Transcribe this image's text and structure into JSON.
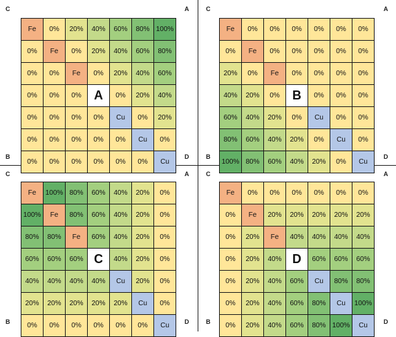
{
  "panels": [
    {
      "corner_labels": {
        "top_left": "C",
        "top_right": "A",
        "bottom_left": "B",
        "bottom_right": "D"
      },
      "cells": [
        [
          "Fe",
          "0%",
          "20%",
          "40%",
          "60%",
          "80%",
          "100%"
        ],
        [
          "0%",
          "Fe",
          "0%",
          "20%",
          "40%",
          "60%",
          "80%"
        ],
        [
          "0%",
          "0%",
          "Fe",
          "0%",
          "20%",
          "40%",
          "60%"
        ],
        [
          "0%",
          "0%",
          "0%",
          "A",
          "0%",
          "20%",
          "40%"
        ],
        [
          "0%",
          "0%",
          "0%",
          "0%",
          "Cu",
          "0%",
          "20%"
        ],
        [
          "0%",
          "0%",
          "0%",
          "0%",
          "0%",
          "Cu",
          "0%"
        ],
        [
          "0%",
          "0%",
          "0%",
          "0%",
          "0%",
          "0%",
          "Cu"
        ]
      ]
    },
    {
      "corner_labels": {
        "top_left": "C",
        "top_right": "A",
        "bottom_left": "B",
        "bottom_right": "D"
      },
      "cells": [
        [
          "Fe",
          "0%",
          "0%",
          "0%",
          "0%",
          "0%",
          "0%"
        ],
        [
          "0%",
          "Fe",
          "0%",
          "0%",
          "0%",
          "0%",
          "0%"
        ],
        [
          "20%",
          "0%",
          "Fe",
          "0%",
          "0%",
          "0%",
          "0%"
        ],
        [
          "40%",
          "20%",
          "0%",
          "B",
          "0%",
          "0%",
          "0%"
        ],
        [
          "60%",
          "40%",
          "20%",
          "0%",
          "Cu",
          "0%",
          "0%"
        ],
        [
          "80%",
          "60%",
          "40%",
          "20%",
          "0%",
          "Cu",
          "0%"
        ],
        [
          "100%",
          "80%",
          "60%",
          "40%",
          "20%",
          "0%",
          "Cu"
        ]
      ]
    },
    {
      "corner_labels": {
        "top_left": "C",
        "top_right": "A",
        "bottom_left": "B",
        "bottom_right": "D"
      },
      "cells": [
        [
          "Fe",
          "100%",
          "80%",
          "60%",
          "40%",
          "20%",
          "0%"
        ],
        [
          "100%",
          "Fe",
          "80%",
          "60%",
          "40%",
          "20%",
          "0%"
        ],
        [
          "80%",
          "80%",
          "Fe",
          "60%",
          "40%",
          "20%",
          "0%"
        ],
        [
          "60%",
          "60%",
          "60%",
          "C",
          "40%",
          "20%",
          "0%"
        ],
        [
          "40%",
          "40%",
          "40%",
          "40%",
          "Cu",
          "20%",
          "0%"
        ],
        [
          "20%",
          "20%",
          "20%",
          "20%",
          "20%",
          "Cu",
          "0%"
        ],
        [
          "0%",
          "0%",
          "0%",
          "0%",
          "0%",
          "0%",
          "Cu"
        ]
      ]
    },
    {
      "corner_labels": {
        "top_left": "C",
        "top_right": "A",
        "bottom_left": "B",
        "bottom_right": "D"
      },
      "cells": [
        [
          "Fe",
          "0%",
          "0%",
          "0%",
          "0%",
          "0%",
          "0%"
        ],
        [
          "0%",
          "Fe",
          "20%",
          "20%",
          "20%",
          "20%",
          "20%"
        ],
        [
          "0%",
          "20%",
          "Fe",
          "40%",
          "40%",
          "40%",
          "40%"
        ],
        [
          "0%",
          "20%",
          "40%",
          "D",
          "60%",
          "60%",
          "60%"
        ],
        [
          "0%",
          "20%",
          "40%",
          "60%",
          "Cu",
          "80%",
          "80%"
        ],
        [
          "0%",
          "20%",
          "40%",
          "60%",
          "80%",
          "Cu",
          "100%"
        ],
        [
          "0%",
          "20%",
          "40%",
          "60%",
          "80%",
          "100%",
          "Cu"
        ]
      ]
    }
  ],
  "colors": {
    "fe": "#f4b183",
    "cu": "#b4c7e7",
    "center": "#ffffff",
    "p0": "#ffe699",
    "p20": "#e2e38f",
    "p40": "#c3da8a",
    "p60": "#a3cf7f",
    "p80": "#82c074",
    "p100": "#62b066"
  }
}
